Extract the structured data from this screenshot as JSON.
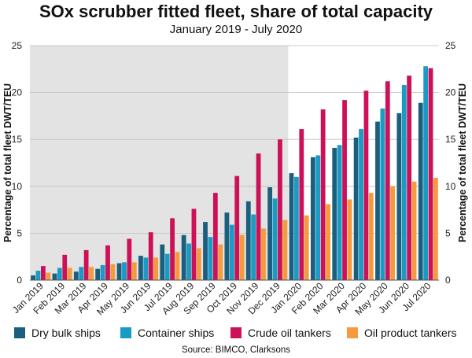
{
  "title": "SOx scrubber fitted fleet, share of total capacity",
  "subtitle": "January 2019 - July 2020",
  "source": "Source: BIMCO, Clarksons",
  "chart_data": {
    "type": "bar",
    "title": "SOx scrubber fitted fleet, share of total capacity",
    "subtitle": "January 2019 - July 2020",
    "ylabel": "Percentage of total fleet DWT/TEU",
    "ylabel_right": "Percentage of total fleet DWT/TEU",
    "ylim": [
      0,
      25
    ],
    "yticks": [
      0,
      5,
      10,
      15,
      20,
      25
    ],
    "grid": true,
    "legend_position": "bottom",
    "shaded_region": {
      "from": "Jan 2019",
      "to": "Dec 2019",
      "color": "#e3e3e3"
    },
    "categories": [
      "Jan 2019",
      "Feb 2019",
      "Mar 2019",
      "Apr 2019",
      "May 2019",
      "Jun 2019",
      "Jul 2019",
      "Aug 2019",
      "Sep 2019",
      "Oct 2019",
      "Nov 2019",
      "Dec 2019",
      "Jan 2020",
      "Feb 2020",
      "Mar 2020",
      "Apr 2020",
      "May 2020",
      "Jun 2020",
      "Jul 2020"
    ],
    "series": [
      {
        "name": "Dry bulk ships",
        "color": "#1b5e7e",
        "values": [
          0.5,
          0.7,
          0.9,
          1.2,
          1.8,
          2.6,
          3.8,
          4.8,
          6.2,
          7.2,
          8.4,
          9.9,
          11.4,
          13.1,
          14.1,
          15.2,
          16.9,
          17.8,
          18.9
        ]
      },
      {
        "name": "Container ships",
        "color": "#1a9bc4",
        "values": [
          1.0,
          1.3,
          1.4,
          1.6,
          1.9,
          2.4,
          2.8,
          3.9,
          4.6,
          5.9,
          7.0,
          8.7,
          11.0,
          13.3,
          14.4,
          16.1,
          18.3,
          20.8,
          22.8
        ]
      },
      {
        "name": "Crude oil tankers",
        "color": "#cc1158",
        "values": [
          1.5,
          2.7,
          3.2,
          3.7,
          4.4,
          5.1,
          6.6,
          7.6,
          9.3,
          11.1,
          13.5,
          15.0,
          16.1,
          18.2,
          19.2,
          20.2,
          21.2,
          21.8,
          22.6
        ]
      },
      {
        "name": "Oil product tankers",
        "color": "#f59a3d",
        "values": [
          0.8,
          1.3,
          1.4,
          1.7,
          1.9,
          2.4,
          3.0,
          3.4,
          3.8,
          4.8,
          5.5,
          6.4,
          6.9,
          8.1,
          8.6,
          9.3,
          10.0,
          10.5,
          10.9
        ]
      }
    ]
  }
}
